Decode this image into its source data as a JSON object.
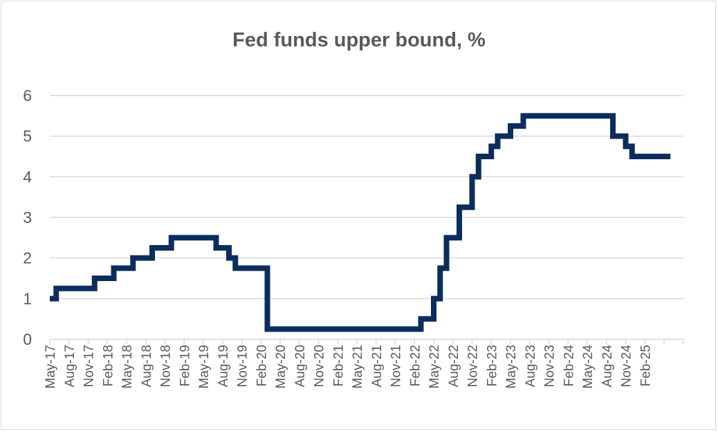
{
  "chart_data": {
    "type": "line",
    "title": "Fed funds upper bound, %",
    "xlabel": "",
    "ylabel": "",
    "ylim": [
      0,
      6
    ],
    "yticks": [
      "0",
      "1",
      "2",
      "3",
      "4",
      "5",
      "6"
    ],
    "grid": true,
    "line_color": "#0b2d5b",
    "grid_color": "#d9d9d9",
    "x_tick_labels": [
      "May-17",
      "Aug-17",
      "Nov-17",
      "Feb-18",
      "May-18",
      "Aug-18",
      "Nov-18",
      "Feb-19",
      "May-19",
      "Aug-19",
      "Nov-19",
      "Feb-20",
      "May-20",
      "Aug-20",
      "Nov-20",
      "Feb-21",
      "May-21",
      "Aug-21",
      "Nov-21",
      "Feb-22",
      "May-22",
      "Aug-22",
      "Nov-22",
      "Feb-23",
      "May-23",
      "Aug-23",
      "Nov-23",
      "Feb-24",
      "May-24",
      "Aug-24",
      "Nov-24",
      "Feb-25"
    ],
    "series": [
      {
        "points": [
          [
            "May-17",
            1.0
          ],
          [
            "Jun-17",
            1.25
          ],
          [
            "Dec-17",
            1.5
          ],
          [
            "Mar-18",
            1.75
          ],
          [
            "Jun-18",
            2.0
          ],
          [
            "Sep-18",
            2.25
          ],
          [
            "Dec-18",
            2.5
          ],
          [
            "Jul-19",
            2.25
          ],
          [
            "Sep-19",
            2.0
          ],
          [
            "Oct-19",
            1.75
          ],
          [
            "Mar-20",
            0.25
          ],
          [
            "Mar-22",
            0.5
          ],
          [
            "May-22",
            1.0
          ],
          [
            "Jun-22",
            1.75
          ],
          [
            "Jul-22",
            2.5
          ],
          [
            "Sep-22",
            3.25
          ],
          [
            "Nov-22",
            4.0
          ],
          [
            "Dec-22",
            4.5
          ],
          [
            "Feb-23",
            4.75
          ],
          [
            "Mar-23",
            5.0
          ],
          [
            "May-23",
            5.25
          ],
          [
            "Jul-23",
            5.5
          ],
          [
            "Sep-24",
            5.0
          ],
          [
            "Nov-24",
            4.75
          ],
          [
            "Dec-24",
            4.5
          ],
          [
            "Jun-25",
            4.5
          ]
        ]
      }
    ]
  }
}
